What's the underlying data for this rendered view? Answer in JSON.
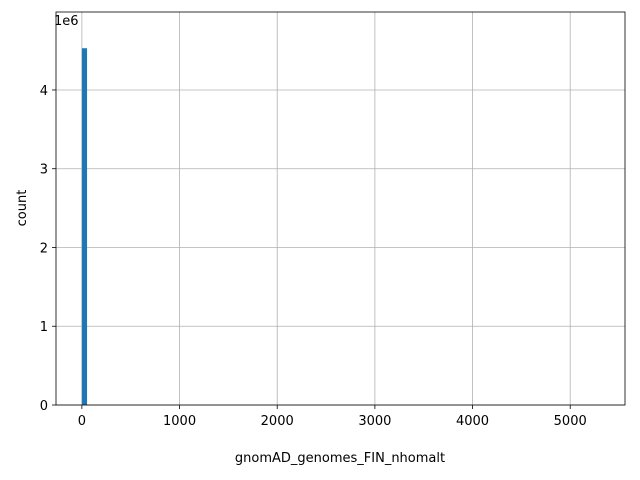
{
  "chart_data": {
    "type": "histogram",
    "xlabel": "gnomAD_genomes_FIN_nhomalt",
    "ylabel": "count",
    "y_offset_label": "1e6",
    "bins": [
      0,
      53,
      106,
      159,
      212,
      265,
      318,
      371,
      424,
      477,
      530,
      583,
      636,
      689,
      742,
      795,
      848,
      901,
      954,
      1007,
      1060,
      1113,
      1166,
      1219,
      1272,
      1325,
      1378,
      1431,
      1484,
      1537,
      1590,
      1643,
      1696,
      1749,
      1802,
      1855,
      1908,
      1961,
      2014,
      2067,
      2120,
      2173,
      2226,
      2279,
      2332,
      2385,
      2438,
      2491,
      2544,
      2597,
      2650,
      2703,
      2756,
      2809,
      2862,
      2915,
      2968,
      3021,
      3074,
      3127,
      3180,
      3233,
      3286,
      3339,
      3392,
      3445,
      3498,
      3551,
      3604,
      3657,
      3710,
      3763,
      3816,
      3869,
      3922,
      3975,
      4028,
      4081,
      4134,
      4187,
      4240,
      4293,
      4346,
      4399,
      4452,
      4505,
      4558,
      4611,
      4664,
      4717,
      4770,
      4823,
      4876,
      4929,
      4982,
      5035,
      5088,
      5141,
      5194,
      5247,
      5300
    ],
    "values": [
      4530000,
      0,
      0,
      0,
      0,
      0,
      0,
      0,
      0,
      0,
      0,
      0,
      0,
      0,
      0,
      0,
      0,
      0,
      0,
      0,
      0,
      0,
      0,
      0,
      0,
      0,
      0,
      0,
      0,
      0,
      0,
      0,
      0,
      0,
      0,
      0,
      0,
      0,
      0,
      0,
      0,
      0,
      0,
      0,
      0,
      0,
      0,
      0,
      0,
      0,
      0,
      0,
      0,
      0,
      0,
      0,
      0,
      0,
      0,
      0,
      0,
      0,
      0,
      0,
      0,
      0,
      0,
      0,
      0,
      0,
      0,
      0,
      0,
      0,
      0,
      0,
      0,
      0,
      0,
      0,
      0,
      0,
      0,
      0,
      0,
      0,
      0,
      0,
      0,
      0,
      0,
      0,
      0,
      0,
      0,
      0,
      0,
      0,
      0,
      0
    ],
    "color": "#1f77b4",
    "xlim": [
      -265,
      5561
    ],
    "xticks": [
      0,
      1000,
      2000,
      3000,
      4000,
      5000
    ],
    "ylim": [
      0,
      4990000
    ],
    "yticks": [
      0,
      {
        "value": 1000000,
        "label": "1"
      },
      {
        "value": 2000000,
        "label": "2"
      },
      {
        "value": 3000000,
        "label": "3"
      },
      {
        "value": 4000000,
        "label": "4"
      }
    ],
    "grid": true
  }
}
